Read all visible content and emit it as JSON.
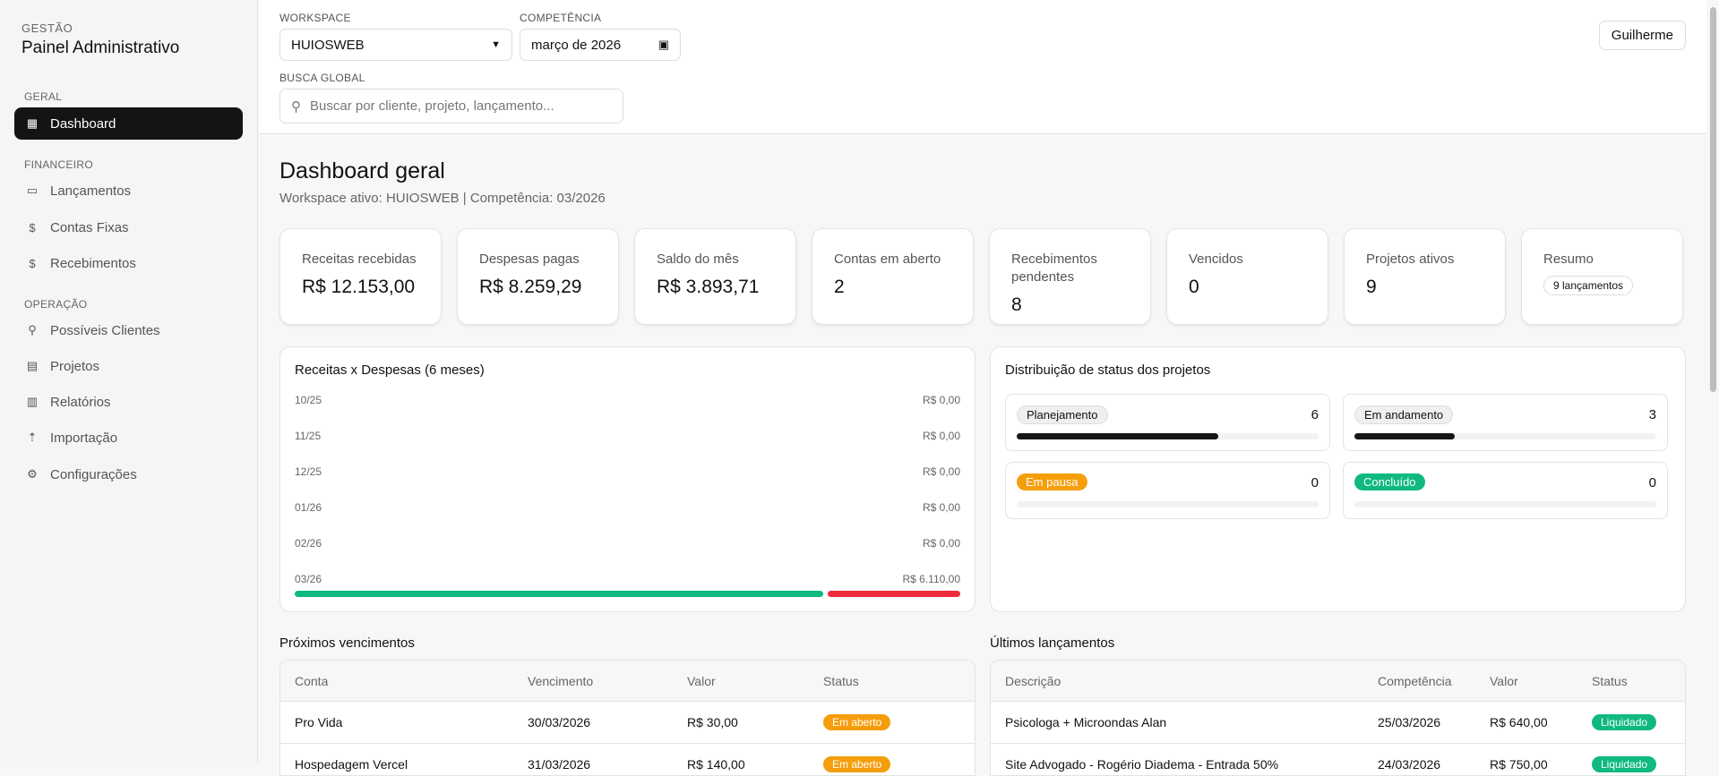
{
  "sidebar": {
    "brand_sub": "GESTÃO",
    "brand_title": "Painel Administrativo",
    "sections": [
      "GERAL",
      "FINANCEIRO",
      "OPERAÇÃO"
    ],
    "items": [
      {
        "label": "Dashboard",
        "icon": "grid-icon"
      },
      {
        "label": "Lançamentos",
        "icon": "wallet-icon"
      },
      {
        "label": "Contas Fixas",
        "icon": "dollar-doc-icon"
      },
      {
        "label": "Recebimentos",
        "icon": "dollar-doc-icon"
      },
      {
        "label": "Possíveis Clientes",
        "icon": "user-search-icon"
      },
      {
        "label": "Projetos",
        "icon": "folder-chart-icon"
      },
      {
        "label": "Relatórios",
        "icon": "chart-icon"
      },
      {
        "label": "Importação",
        "icon": "upload-file-icon"
      },
      {
        "label": "Configurações",
        "icon": "gear-icon"
      }
    ]
  },
  "header": {
    "workspace_label": "WORKSPACE",
    "workspace_value": "HUIOSWEB",
    "competencia_label": "COMPETÊNCIA",
    "competencia_value": "março de 2026",
    "search_label": "BUSCA GLOBAL",
    "search_placeholder": "Buscar por cliente, projeto, lançamento...",
    "user": "Guilherme"
  },
  "page": {
    "title": "Dashboard geral",
    "subtitle": "Workspace ativo: HUIOSWEB | Competência: 03/2026"
  },
  "cards": [
    {
      "label": "Receitas recebidas",
      "value": "R$ 12.153,00"
    },
    {
      "label": "Despesas pagas",
      "value": "R$ 8.259,29"
    },
    {
      "label": "Saldo do mês",
      "value": "R$ 3.893,71"
    },
    {
      "label": "Contas em aberto",
      "value": "2"
    },
    {
      "label": "Recebimentos pendentes",
      "value": "8"
    },
    {
      "label": "Vencidos",
      "value": "0"
    },
    {
      "label": "Projetos ativos",
      "value": "9"
    },
    {
      "label": "Resumo",
      "pill": "9 lançamentos"
    }
  ],
  "chart": {
    "title": "Receitas x Despesas (6 meses)",
    "rows": [
      {
        "month": "10/25",
        "value": "R$ 0,00",
        "receita": 0,
        "despesa": 0
      },
      {
        "month": "11/25",
        "value": "R$ 0,00",
        "receita": 0,
        "despesa": 0
      },
      {
        "month": "12/25",
        "value": "R$ 0,00",
        "receita": 0,
        "despesa": 0
      },
      {
        "month": "01/26",
        "value": "R$ 0,00",
        "receita": 0,
        "despesa": 0
      },
      {
        "month": "02/26",
        "value": "R$ 0,00",
        "receita": 0,
        "despesa": 0
      },
      {
        "month": "03/26",
        "value": "R$ 6.110,00",
        "receita": 0.8,
        "despesa": 0.2
      }
    ],
    "colors": {
      "receita": "#10b981",
      "despesa": "#ef2b3b"
    }
  },
  "status": {
    "title": "Distribuição de status dos projetos",
    "items": [
      {
        "label": "Planejamento",
        "count": "6",
        "fraction": 0.667,
        "bg": "#efefef",
        "fg": "#111"
      },
      {
        "label": "Em andamento",
        "count": "3",
        "fraction": 0.333,
        "bg": "#efefef",
        "fg": "#111"
      },
      {
        "label": "Em pausa",
        "count": "0",
        "fraction": 0,
        "bg": "#f59e0b",
        "fg": "#fff"
      },
      {
        "label": "Concluído",
        "count": "0",
        "fraction": 0,
        "bg": "#10b981",
        "fg": "#fff"
      }
    ]
  },
  "proximos": {
    "title": "Próximos vencimentos",
    "headers": [
      "Conta",
      "Vencimento",
      "Valor",
      "Status"
    ],
    "rows": [
      [
        "Pro Vida",
        "30/03/2026",
        "R$ 30,00",
        "Em aberto"
      ],
      [
        "Hospedagem Vercel",
        "31/03/2026",
        "R$ 140,00",
        "Em aberto"
      ]
    ],
    "badge_color": "#f59e0b"
  },
  "ultimos": {
    "title": "Últimos lançamentos",
    "headers": [
      "Descrição",
      "Competência",
      "Valor",
      "Status"
    ],
    "rows": [
      [
        "Psicologa + Microondas Alan",
        "25/03/2026",
        "R$ 640,00",
        "Liquidado"
      ],
      [
        "Site Advogado - Rogério Diadema - Entrada 50%",
        "24/03/2026",
        "R$ 750,00",
        "Liquidado"
      ]
    ],
    "badge_color": "#10b981"
  }
}
